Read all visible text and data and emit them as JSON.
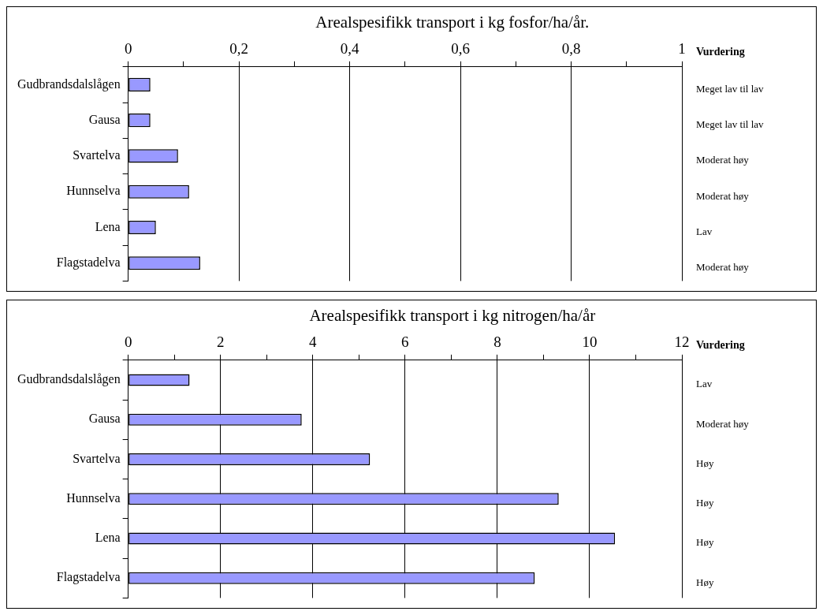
{
  "chart_data": [
    {
      "type": "bar",
      "orientation": "horizontal",
      "title": "Arealspesifikk transport i kg fosfor/ha/år.",
      "categories": [
        "Gudbrandsdalslågen",
        "Gausa",
        "Svartelva",
        "Hunnselva",
        "Lena",
        "Flagstadelva"
      ],
      "values": [
        0.04,
        0.04,
        0.09,
        0.11,
        0.05,
        0.13
      ],
      "color": "#9999ff",
      "xlim": [
        0,
        1
      ],
      "xticks": [
        0,
        {
          "value": 0.1,
          "label": null
        },
        {
          "value": 0.2,
          "label": "0,2"
        },
        {
          "value": 0.3,
          "label": null
        },
        {
          "value": 0.4,
          "label": "0,4"
        },
        {
          "value": 0.5,
          "label": null
        },
        {
          "value": 0.6,
          "label": "0,6"
        },
        {
          "value": 0.7,
          "label": null
        },
        {
          "value": 0.8,
          "label": "0,8"
        },
        {
          "value": 0.9,
          "label": null
        },
        1
      ],
      "grid": "x",
      "legend": false,
      "annotations": [
        "Vurdering",
        "Meget lav til lav",
        "Meget lav til lav",
        "Moderat høy",
        "Moderat høy",
        "Lav",
        "Moderat høy"
      ]
    },
    {
      "type": "bar",
      "orientation": "horizontal",
      "title": "Arealspesifikk transport i kg nitrogen/ha/år",
      "categories": [
        "Gudbrandsdalslågen",
        "Gausa",
        "Svartelva",
        "Hunnselva",
        "Lena",
        "Flagstadelva"
      ],
      "values": [
        1.33,
        3.76,
        5.24,
        9.33,
        10.55,
        8.81
      ],
      "color": "#9999ff",
      "xlim": [
        0,
        12
      ],
      "xticks": [
        0,
        {
          "value": 1,
          "label": null
        },
        2,
        {
          "value": 3,
          "label": null
        },
        4,
        {
          "value": 5,
          "label": null
        },
        6,
        {
          "value": 7,
          "label": null
        },
        8,
        {
          "value": 9,
          "label": null
        },
        10,
        {
          "value": 11,
          "label": null
        },
        12
      ],
      "grid": "x",
      "legend": false,
      "annotations": [
        "Vurdering",
        "Lav",
        "Moderat høy",
        "Høy",
        "Høy",
        "Høy",
        "Høy"
      ]
    }
  ]
}
